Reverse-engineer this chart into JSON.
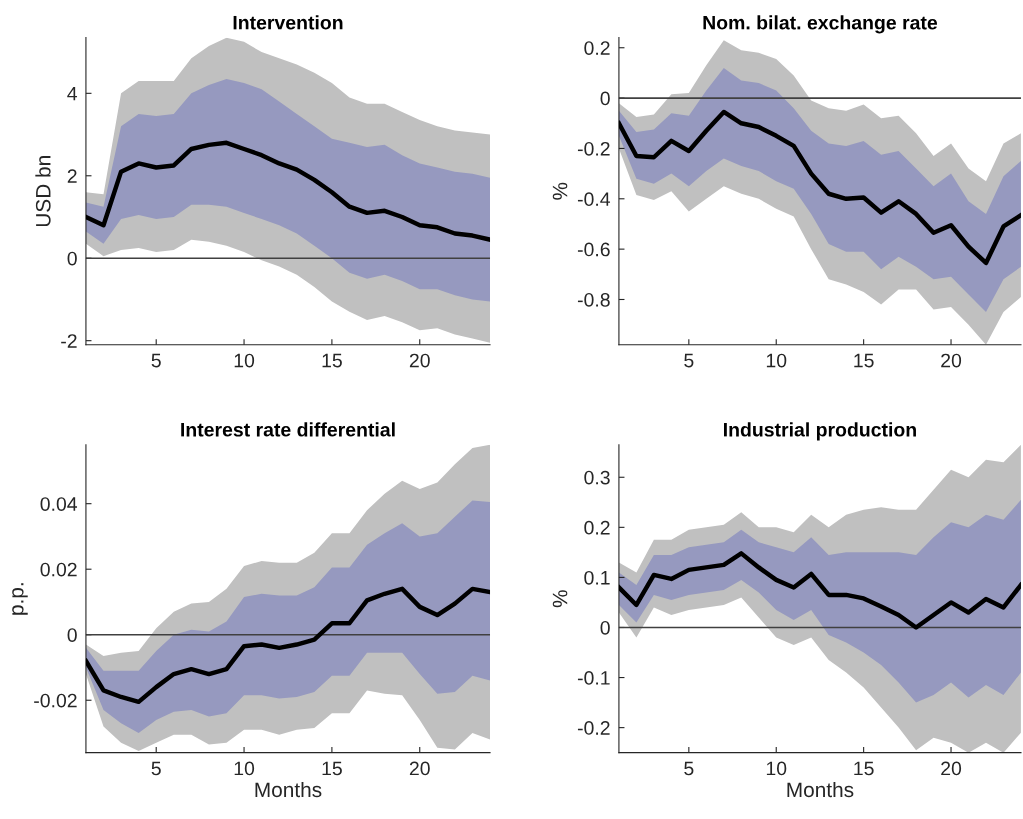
{
  "chart_data": [
    {
      "type": "line",
      "title": "Intervention",
      "ylabel": "USD bn",
      "x": [
        1,
        2,
        3,
        4,
        5,
        6,
        7,
        8,
        9,
        10,
        11,
        12,
        13,
        14,
        15,
        16,
        17,
        18,
        19,
        20,
        21,
        22,
        23,
        24
      ],
      "xlim": [
        1,
        24
      ],
      "xticks": [
        5,
        10,
        15,
        20
      ],
      "ylim": [
        -2.1,
        5.35
      ],
      "yticks": [
        -2,
        0,
        2,
        4
      ],
      "grid": false,
      "tick_labels": true,
      "ref_lines": [
        {
          "axis": "y",
          "value": 0,
          "color": "#404040"
        }
      ],
      "series": [
        {
          "color": "#c0c0c0",
          "values": [
            null,
            null,
            null,
            null,
            null,
            null,
            null,
            null,
            null,
            null,
            null,
            null,
            null,
            null,
            null,
            null,
            null,
            null,
            null,
            null,
            null,
            null,
            null,
            null
          ],
          "lower": [
            0.35,
            0.05,
            0.2,
            0.25,
            0.15,
            0.2,
            0.45,
            0.4,
            0.3,
            0.15,
            -0.05,
            -0.2,
            -0.4,
            -0.7,
            -1.05,
            -1.3,
            -1.5,
            -1.4,
            -1.55,
            -1.75,
            -1.7,
            -1.85,
            -1.95,
            -2.05
          ],
          "upper": [
            1.6,
            1.55,
            4.0,
            4.3,
            4.3,
            4.3,
            4.85,
            5.15,
            5.35,
            5.25,
            5.0,
            4.85,
            4.7,
            4.5,
            4.25,
            3.9,
            3.75,
            3.75,
            3.55,
            3.35,
            3.2,
            3.1,
            3.05,
            3.0
          ]
        },
        {
          "color": "#9699bf",
          "values": [
            null,
            null,
            null,
            null,
            null,
            null,
            null,
            null,
            null,
            null,
            null,
            null,
            null,
            null,
            null,
            null,
            null,
            null,
            null,
            null,
            null,
            null,
            null,
            null
          ],
          "lower": [
            0.65,
            0.35,
            0.95,
            1.05,
            0.95,
            1.0,
            1.3,
            1.3,
            1.25,
            1.1,
            0.95,
            0.8,
            0.6,
            0.3,
            0.0,
            -0.35,
            -0.5,
            -0.4,
            -0.55,
            -0.75,
            -0.75,
            -0.9,
            -1.0,
            -1.05
          ],
          "upper": [
            1.35,
            1.25,
            3.2,
            3.5,
            3.45,
            3.5,
            4.0,
            4.2,
            4.35,
            4.25,
            4.1,
            3.8,
            3.5,
            3.2,
            2.9,
            2.8,
            2.7,
            2.75,
            2.5,
            2.3,
            2.2,
            2.1,
            2.05,
            1.95
          ]
        },
        {
          "color": "#000000",
          "values": [
            1.0,
            0.8,
            2.1,
            2.3,
            2.2,
            2.25,
            2.65,
            2.75,
            2.8,
            2.65,
            2.5,
            2.3,
            2.15,
            1.9,
            1.6,
            1.25,
            1.1,
            1.15,
            1.0,
            0.8,
            0.75,
            0.6,
            0.55,
            0.45
          ]
        }
      ]
    },
    {
      "type": "line",
      "title": "Nom. bilat. exchange rate",
      "ylabel": "%",
      "x": [
        1,
        2,
        3,
        4,
        5,
        6,
        7,
        8,
        9,
        10,
        11,
        12,
        13,
        14,
        15,
        16,
        17,
        18,
        19,
        20,
        21,
        22,
        23,
        24
      ],
      "xlim": [
        1,
        24
      ],
      "xticks": [
        5,
        10,
        15,
        20
      ],
      "ylim": [
        -0.98,
        0.24
      ],
      "yticks": [
        -0.8,
        -0.6,
        -0.4,
        -0.2,
        0,
        0.2
      ],
      "grid": false,
      "ref_lines": [
        {
          "axis": "y",
          "value": 0,
          "color": "#404040"
        }
      ],
      "series": [
        {
          "color": "#c0c0c0",
          "values": [
            null,
            null,
            null,
            null,
            null,
            null,
            null,
            null,
            null,
            null,
            null,
            null,
            null,
            null,
            null,
            null,
            null,
            null,
            null,
            null,
            null,
            null,
            null,
            null
          ],
          "lower": [
            -0.2,
            -0.385,
            -0.405,
            -0.37,
            -0.45,
            -0.4,
            -0.35,
            -0.38,
            -0.4,
            -0.44,
            -0.47,
            -0.6,
            -0.72,
            -0.74,
            -0.77,
            -0.82,
            -0.76,
            -0.76,
            -0.84,
            -0.83,
            -0.9,
            -0.98,
            -0.85,
            -0.79
          ],
          "upper": [
            -0.02,
            -0.075,
            -0.065,
            0.015,
            0.02,
            0.13,
            0.23,
            0.19,
            0.18,
            0.155,
            0.09,
            -0.01,
            -0.04,
            -0.05,
            -0.025,
            -0.08,
            -0.07,
            -0.14,
            -0.23,
            -0.18,
            -0.28,
            -0.33,
            -0.18,
            -0.14
          ]
        },
        {
          "color": "#9699bf",
          "values": [
            null,
            null,
            null,
            null,
            null,
            null,
            null,
            null,
            null,
            null,
            null,
            null,
            null,
            null,
            null,
            null,
            null,
            null,
            null,
            null,
            null,
            null,
            null,
            null
          ],
          "lower": [
            -0.15,
            -0.32,
            -0.34,
            -0.3,
            -0.35,
            -0.29,
            -0.24,
            -0.27,
            -0.29,
            -0.33,
            -0.36,
            -0.46,
            -0.58,
            -0.61,
            -0.61,
            -0.68,
            -0.63,
            -0.67,
            -0.72,
            -0.71,
            -0.78,
            -0.85,
            -0.72,
            -0.67
          ],
          "upper": [
            -0.05,
            -0.135,
            -0.125,
            -0.06,
            -0.07,
            0.03,
            0.12,
            0.07,
            0.06,
            0.03,
            -0.04,
            -0.13,
            -0.18,
            -0.19,
            -0.17,
            -0.225,
            -0.21,
            -0.28,
            -0.35,
            -0.3,
            -0.41,
            -0.46,
            -0.31,
            -0.25
          ]
        },
        {
          "color": "#000000",
          "values": [
            -0.1,
            -0.23,
            -0.235,
            -0.17,
            -0.21,
            -0.13,
            -0.055,
            -0.1,
            -0.115,
            -0.15,
            -0.19,
            -0.3,
            -0.38,
            -0.4,
            -0.395,
            -0.455,
            -0.41,
            -0.46,
            -0.535,
            -0.505,
            -0.59,
            -0.655,
            -0.51,
            -0.465
          ]
        }
      ]
    },
    {
      "type": "line",
      "title": "Interest rate differential",
      "ylabel": "p.p.",
      "xlabel": "Months",
      "x": [
        1,
        2,
        3,
        4,
        5,
        6,
        7,
        8,
        9,
        10,
        11,
        12,
        13,
        14,
        15,
        16,
        17,
        18,
        19,
        20,
        21,
        22,
        23,
        24
      ],
      "xlim": [
        1,
        24
      ],
      "xticks": [
        5,
        10,
        15,
        20
      ],
      "ylim": [
        -0.036,
        0.058
      ],
      "yticks": [
        -0.02,
        0,
        0.02,
        0.04
      ],
      "grid": false,
      "ref_lines": [
        {
          "axis": "y",
          "value": 0,
          "color": "#404040"
        }
      ],
      "series": [
        {
          "color": "#c0c0c0",
          "values": [
            null,
            null,
            null,
            null,
            null,
            null,
            null,
            null,
            null,
            null,
            null,
            null,
            null,
            null,
            null,
            null,
            null,
            null,
            null,
            null,
            null,
            null,
            null,
            null
          ],
          "lower": [
            -0.012,
            -0.028,
            -0.033,
            -0.0355,
            -0.033,
            -0.0305,
            -0.0305,
            -0.0335,
            -0.033,
            -0.029,
            -0.029,
            -0.0305,
            -0.029,
            -0.0285,
            -0.024,
            -0.024,
            -0.017,
            -0.018,
            -0.0185,
            -0.026,
            -0.0345,
            -0.035,
            -0.03,
            -0.032
          ],
          "upper": [
            -0.003,
            -0.0065,
            -0.0055,
            -0.005,
            0.002,
            0.007,
            0.0095,
            0.01,
            0.014,
            0.021,
            0.0225,
            0.022,
            0.022,
            0.025,
            0.031,
            0.031,
            0.038,
            0.043,
            0.047,
            0.0445,
            0.0465,
            0.052,
            0.057,
            0.058
          ]
        },
        {
          "color": "#9699bf",
          "values": [
            null,
            null,
            null,
            null,
            null,
            null,
            null,
            null,
            null,
            null,
            null,
            null,
            null,
            null,
            null,
            null,
            null,
            null,
            null,
            null,
            null,
            null,
            null,
            null
          ],
          "lower": [
            -0.01,
            -0.023,
            -0.027,
            -0.03,
            -0.026,
            -0.0235,
            -0.023,
            -0.025,
            -0.024,
            -0.0185,
            -0.0185,
            -0.0195,
            -0.019,
            -0.0175,
            -0.0125,
            -0.0125,
            -0.0055,
            -0.0055,
            -0.0055,
            -0.012,
            -0.018,
            -0.0175,
            -0.0125,
            -0.014
          ],
          "upper": [
            -0.004,
            -0.011,
            -0.011,
            -0.011,
            -0.005,
            0.0,
            0.0015,
            0.001,
            0.004,
            0.0115,
            0.0125,
            0.012,
            0.012,
            0.0145,
            0.0205,
            0.0205,
            0.0275,
            0.031,
            0.034,
            0.03,
            0.031,
            0.036,
            0.041,
            0.0405
          ]
        },
        {
          "color": "#000000",
          "values": [
            -0.008,
            -0.017,
            -0.019,
            -0.0205,
            -0.016,
            -0.012,
            -0.0105,
            -0.012,
            -0.0105,
            -0.0035,
            -0.003,
            -0.004,
            -0.003,
            -0.0015,
            0.0035,
            0.0035,
            0.0105,
            0.0125,
            0.014,
            0.0085,
            0.006,
            0.0095,
            0.014,
            0.013
          ]
        }
      ]
    },
    {
      "type": "line",
      "title": "Industrial production",
      "ylabel": "%",
      "xlabel": "Months",
      "x": [
        1,
        2,
        3,
        4,
        5,
        6,
        7,
        8,
        9,
        10,
        11,
        12,
        13,
        14,
        15,
        16,
        17,
        18,
        19,
        20,
        21,
        22,
        23,
        24
      ],
      "xlim": [
        1,
        24
      ],
      "xticks": [
        5,
        10,
        15,
        20
      ],
      "ylim": [
        -0.25,
        0.365
      ],
      "yticks": [
        -0.2,
        -0.1,
        0,
        0.1,
        0.2,
        0.3
      ],
      "grid": false,
      "ref_lines": [
        {
          "axis": "y",
          "value": 0,
          "color": "#404040"
        }
      ],
      "series": [
        {
          "color": "#c0c0c0",
          "values": [
            null,
            null,
            null,
            null,
            null,
            null,
            null,
            null,
            null,
            null,
            null,
            null,
            null,
            null,
            null,
            null,
            null,
            null,
            null,
            null,
            null,
            null,
            null,
            null
          ],
          "lower": [
            0.03,
            -0.02,
            0.04,
            0.025,
            0.035,
            0.04,
            0.045,
            0.06,
            0.02,
            -0.02,
            -0.035,
            -0.02,
            -0.065,
            -0.09,
            -0.12,
            -0.16,
            -0.2,
            -0.245,
            -0.22,
            -0.23,
            -0.25,
            -0.23,
            -0.25,
            -0.21
          ],
          "upper": [
            0.13,
            0.11,
            0.175,
            0.175,
            0.195,
            0.2,
            0.205,
            0.23,
            0.2,
            0.2,
            0.19,
            0.225,
            0.2,
            0.225,
            0.235,
            0.24,
            0.235,
            0.235,
            0.275,
            0.315,
            0.3,
            0.335,
            0.33,
            0.365
          ]
        },
        {
          "color": "#9699bf",
          "values": [
            null,
            null,
            null,
            null,
            null,
            null,
            null,
            null,
            null,
            null,
            null,
            null,
            null,
            null,
            null,
            null,
            null,
            null,
            null,
            null,
            null,
            null,
            null,
            null
          ],
          "lower": [
            0.045,
            0.01,
            0.065,
            0.055,
            0.065,
            0.07,
            0.075,
            0.095,
            0.07,
            0.035,
            0.015,
            0.035,
            -0.015,
            -0.03,
            -0.05,
            -0.075,
            -0.11,
            -0.15,
            -0.135,
            -0.11,
            -0.14,
            -0.115,
            -0.135,
            -0.09
          ],
          "upper": [
            0.11,
            0.085,
            0.145,
            0.145,
            0.16,
            0.165,
            0.17,
            0.195,
            0.17,
            0.16,
            0.15,
            0.18,
            0.145,
            0.15,
            0.15,
            0.15,
            0.15,
            0.145,
            0.18,
            0.21,
            0.2,
            0.225,
            0.215,
            0.255
          ]
        },
        {
          "color": "#000000",
          "values": [
            0.08,
            0.045,
            0.105,
            0.097,
            0.115,
            0.12,
            0.125,
            0.148,
            0.12,
            0.095,
            0.08,
            0.107,
            0.065,
            0.065,
            0.058,
            0.042,
            0.025,
            0.0,
            0.025,
            0.05,
            0.03,
            0.057,
            0.04,
            0.085
          ]
        }
      ]
    }
  ]
}
